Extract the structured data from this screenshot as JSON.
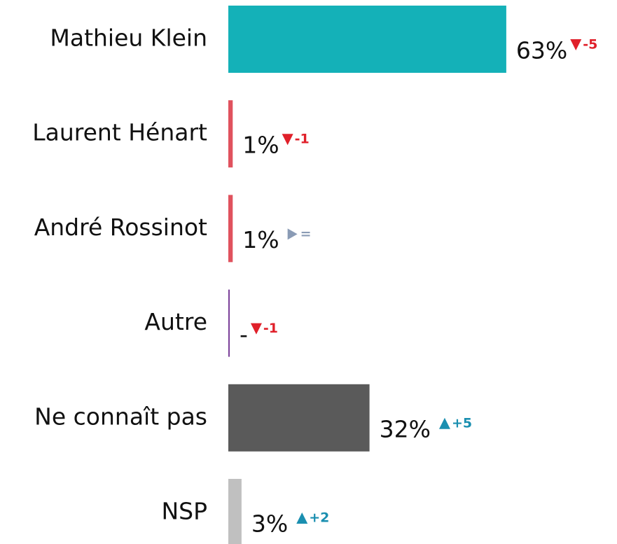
{
  "chart_data": {
    "type": "bar",
    "orientation": "horizontal",
    "categories": [
      "Mathieu Klein",
      "Laurent Hénart",
      "André Rossinot",
      "Autre",
      "Ne connaît pas",
      "NSP"
    ],
    "values": [
      63,
      1,
      1,
      0,
      32,
      3
    ],
    "value_labels": [
      "63%",
      "1%",
      "1%",
      "-",
      "32%",
      "3%"
    ],
    "colors": [
      "#14b1b8",
      "#e0525e",
      "#e0525e",
      "#7b3f99",
      "#5a5a5a",
      "#c0c0c0"
    ],
    "changes": [
      -5,
      -1,
      0,
      -1,
      5,
      2
    ],
    "change_labels": [
      "-5",
      "-1",
      "=",
      "-1",
      "+5",
      "+2"
    ],
    "change_colors": {
      "down": "#e0202a",
      "up": "#1a8fb0",
      "flat": "#8a9bb5"
    }
  }
}
